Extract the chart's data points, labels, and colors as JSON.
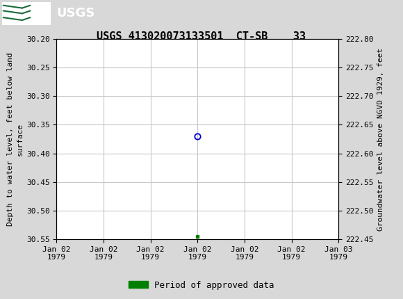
{
  "title": "USGS 413020073133501  CT-SB    33",
  "ylabel_left": "Depth to water level, feet below land\nsurface",
  "ylabel_right": "Groundwater level above NGVD 1929, feet",
  "ylim_left": [
    30.2,
    30.55
  ],
  "ylim_right": [
    222.45,
    222.8
  ],
  "yticks_left": [
    30.2,
    30.25,
    30.3,
    30.35,
    30.4,
    30.45,
    30.5,
    30.55
  ],
  "yticks_right": [
    222.45,
    222.5,
    222.55,
    222.6,
    222.65,
    222.7,
    222.75,
    222.8
  ],
  "data_point_x_idx": 3,
  "data_point_y": 30.37,
  "approved_x_idx": 3,
  "approved_y": 30.545,
  "header_color": "#1a6b3c",
  "bg_color": "#d8d8d8",
  "plot_bg_color": "#ffffff",
  "grid_color": "#c8c8c8",
  "open_circle_color": "#0000cc",
  "approved_square_color": "#008000",
  "legend_label": "Period of approved data",
  "font_family": "monospace",
  "title_fontsize": 11,
  "axis_label_fontsize": 8,
  "tick_fontsize": 8,
  "xtick_labels": [
    "Jan 02\n1979",
    "Jan 02\n1979",
    "Jan 02\n1979",
    "Jan 02\n1979",
    "Jan 02\n1979",
    "Jan 02\n1979",
    "Jan 03\n1979"
  ],
  "num_xticks": 7,
  "xlim": [
    0,
    6
  ]
}
